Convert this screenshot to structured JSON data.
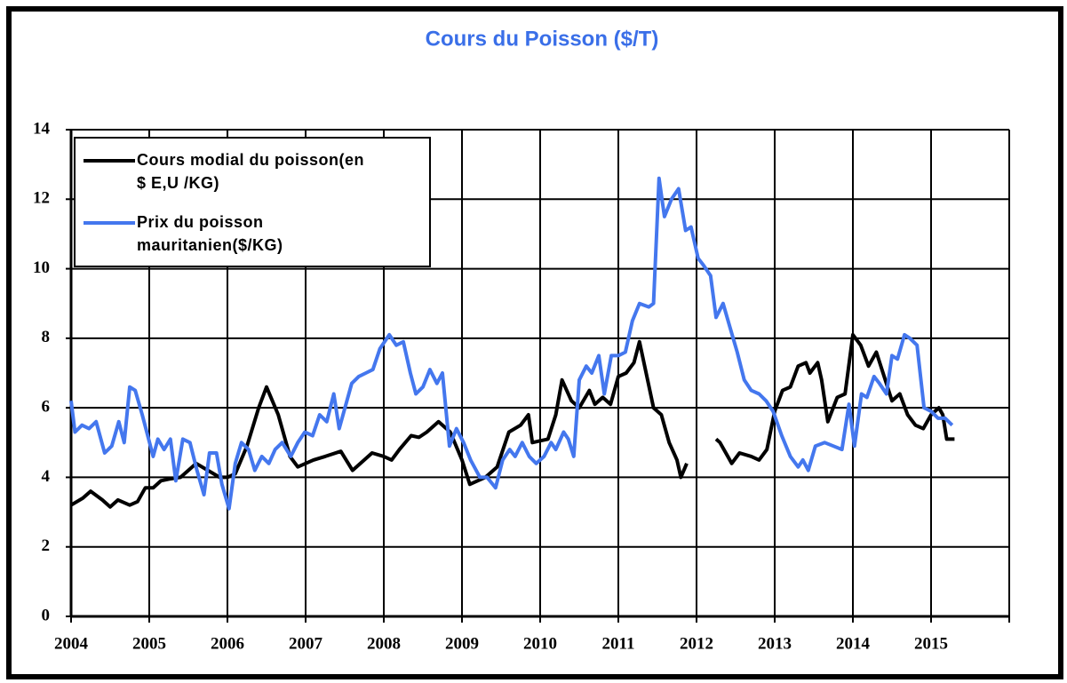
{
  "chart_data": {
    "type": "line",
    "title": "Cours du Poisson ($/T)",
    "xlim": [
      2004,
      2016
    ],
    "xticks": [
      2004,
      2005,
      2006,
      2007,
      2008,
      2009,
      2010,
      2011,
      2012,
      2013,
      2014,
      2015
    ],
    "ylim": [
      0,
      14
    ],
    "yticks": [
      0,
      2,
      4,
      6,
      8,
      10,
      12,
      14
    ],
    "grid": true,
    "legend": "upper left",
    "series": [
      {
        "name": "Cours modial du poisson(en $ E,U /KG)",
        "color": "#000000",
        "x": [
          2004.0,
          2004.15,
          2004.25,
          2004.4,
          2004.5,
          2004.6,
          2004.75,
          2004.85,
          2004.95,
          2005.05,
          2005.15,
          2005.25,
          2005.4,
          2005.5,
          2005.6,
          2005.75,
          2005.9,
          2006.0,
          2006.1,
          2006.25,
          2006.4,
          2006.5,
          2006.65,
          2006.8,
          2006.9,
          2007.0,
          2007.1,
          2007.25,
          2007.45,
          2007.6,
          2007.75,
          2007.85,
          2008.0,
          2008.1,
          2008.2,
          2008.35,
          2008.45,
          2008.55,
          2008.7,
          2008.85,
          2009.0,
          2009.1,
          2009.2,
          2009.3,
          2009.45,
          2009.6,
          2009.75,
          2009.85,
          2009.9,
          2010.0,
          2010.1,
          2010.2,
          2010.28,
          2010.4,
          2010.5,
          2010.63,
          2010.7,
          2010.8,
          2010.9,
          2011.0,
          2011.1,
          2011.2,
          2011.27,
          2011.45,
          2011.55,
          2011.65,
          2011.75,
          2011.8,
          2011.875,
          2012.1,
          2012.25,
          2012.3,
          2012.4,
          2012.45,
          2012.55,
          2012.7,
          2012.8,
          2012.9,
          2013.0,
          2013.1,
          2013.2,
          2013.3,
          2013.4,
          2013.45,
          2013.55,
          2013.6,
          2013.68,
          2013.8,
          2013.9,
          2014.0,
          2014.1,
          2014.2,
          2014.3,
          2014.4,
          2014.5,
          2014.6,
          2014.7,
          2014.8,
          2014.9,
          2015.0,
          2015.1,
          2015.15,
          2015.2,
          2015.3
        ],
        "values": [
          3.2,
          3.4,
          3.6,
          3.35,
          3.15,
          3.35,
          3.2,
          3.3,
          3.7,
          3.7,
          3.9,
          3.95,
          4.0,
          4.2,
          4.4,
          4.2,
          4.0,
          4.0,
          4.1,
          4.9,
          6.0,
          6.6,
          5.8,
          4.6,
          4.3,
          4.4,
          4.5,
          4.6,
          4.75,
          4.2,
          4.5,
          4.7,
          4.6,
          4.5,
          4.8,
          5.2,
          5.15,
          5.3,
          5.6,
          5.3,
          4.5,
          3.8,
          3.9,
          4.0,
          4.3,
          5.3,
          5.5,
          5.8,
          5.0,
          5.05,
          5.1,
          5.8,
          6.8,
          6.2,
          6.0,
          6.5,
          6.1,
          6.3,
          6.1,
          6.9,
          7.0,
          7.3,
          7.9,
          6.0,
          5.8,
          5.0,
          4.5,
          4.0,
          4.4,
          null,
          5.1,
          5.0,
          4.6,
          4.4,
          4.7,
          4.6,
          4.5,
          4.8,
          5.9,
          6.5,
          6.6,
          7.2,
          7.3,
          7.0,
          7.3,
          6.8,
          5.6,
          6.3,
          6.4,
          8.1,
          7.8,
          7.2,
          7.6,
          6.9,
          6.2,
          6.4,
          5.8,
          5.5,
          5.4,
          5.8,
          6.0,
          5.8,
          5.1,
          5.1
        ]
      },
      {
        "name": "Prix du poisson mauritanien($/KG)",
        "color": "#4477ee",
        "x": [
          2004.0,
          2004.05,
          2004.14,
          2004.23,
          2004.32,
          2004.43,
          2004.52,
          2004.61,
          2004.68,
          2004.75,
          2004.82,
          2004.91,
          2005.05,
          2005.11,
          2005.19,
          2005.27,
          2005.34,
          2005.43,
          2005.52,
          2005.61,
          2005.7,
          2005.77,
          2005.86,
          2005.93,
          2006.02,
          2006.1,
          2006.18,
          2006.27,
          2006.35,
          2006.44,
          2006.53,
          2006.61,
          2006.7,
          2006.81,
          2006.9,
          2006.99,
          2007.09,
          2007.18,
          2007.27,
          2007.36,
          2007.43,
          2007.59,
          2007.68,
          2007.77,
          2007.86,
          2007.95,
          2008.07,
          2008.16,
          2008.25,
          2008.34,
          2008.41,
          2008.5,
          2008.59,
          2008.68,
          2008.75,
          2008.84,
          2008.93,
          2009.02,
          2009.11,
          2009.23,
          2009.32,
          2009.43,
          2009.52,
          2009.61,
          2009.68,
          2009.77,
          2009.86,
          2009.95,
          2010.05,
          2010.14,
          2010.2,
          2010.3,
          2010.36,
          2010.43,
          2010.5,
          2010.59,
          2010.66,
          2010.75,
          2010.82,
          2010.91,
          2011.0,
          2011.09,
          2011.18,
          2011.27,
          2011.39,
          2011.45,
          2011.52,
          2011.59,
          2011.68,
          2011.77,
          2011.86,
          2011.93,
          2012.02,
          2012.09,
          2012.18,
          2012.25,
          2012.34,
          2012.43,
          2012.52,
          2012.61,
          2012.7,
          2012.8,
          2012.89,
          2012.98,
          2013.09,
          2013.2,
          2013.3,
          2013.36,
          2013.43,
          2013.52,
          2013.64,
          2013.75,
          2013.86,
          2013.95,
          2014.02,
          2014.11,
          2014.18,
          2014.27,
          2014.34,
          2014.43,
          2014.5,
          2014.57,
          2014.66,
          2014.73,
          2014.82,
          2014.91,
          2015.0,
          2015.09,
          2015.18,
          2015.27
        ],
        "values": [
          6.2,
          5.3,
          5.5,
          5.4,
          5.6,
          4.7,
          4.9,
          5.6,
          5.0,
          6.6,
          6.5,
          5.8,
          4.6,
          5.1,
          4.8,
          5.1,
          3.9,
          5.1,
          5.0,
          4.2,
          3.5,
          4.7,
          4.7,
          3.8,
          3.1,
          4.4,
          5.0,
          4.8,
          4.2,
          4.6,
          4.4,
          4.8,
          5.0,
          4.6,
          5.0,
          5.3,
          5.2,
          5.8,
          5.6,
          6.4,
          5.4,
          6.7,
          6.9,
          7.0,
          7.1,
          7.7,
          8.1,
          7.8,
          7.9,
          7.0,
          6.4,
          6.6,
          7.1,
          6.7,
          7.0,
          4.9,
          5.4,
          5.0,
          4.5,
          4.0,
          4.0,
          3.7,
          4.5,
          4.8,
          4.6,
          5.0,
          4.6,
          4.4,
          4.6,
          5.0,
          4.8,
          5.3,
          5.1,
          4.6,
          6.8,
          7.2,
          7.0,
          7.5,
          6.4,
          7.5,
          7.5,
          7.6,
          8.5,
          9.0,
          8.9,
          9.0,
          12.6,
          11.5,
          12.0,
          12.3,
          11.1,
          11.2,
          10.3,
          10.1,
          9.8,
          8.6,
          9.0,
          8.3,
          7.6,
          6.8,
          6.5,
          6.4,
          6.2,
          5.9,
          5.2,
          4.6,
          4.3,
          4.5,
          4.2,
          4.9,
          5.0,
          4.9,
          4.8,
          6.1,
          4.9,
          6.4,
          6.3,
          6.9,
          6.7,
          6.4,
          7.5,
          7.4,
          8.1,
          8.0,
          7.8,
          6.0,
          5.9,
          5.7,
          5.7,
          5.5
        ]
      }
    ]
  }
}
